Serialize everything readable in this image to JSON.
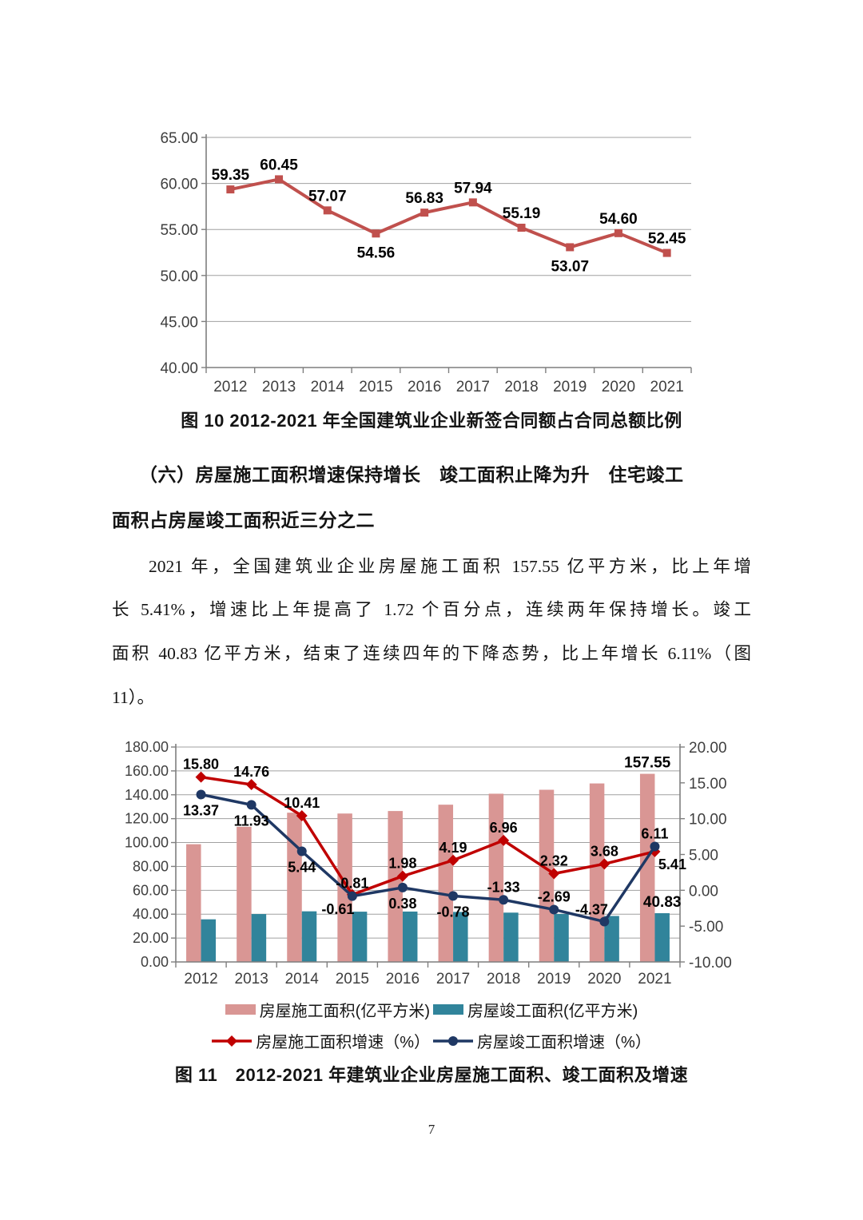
{
  "page": {
    "number": "7"
  },
  "figure10": {
    "caption": "图 10 2012-2021 年全国建筑业企业新签合同额占合同总额比例"
  },
  "section": {
    "heading_line1": "（六）房屋施工面积增速保持增长　竣工面积止降为升　住宅竣工",
    "heading_line2": "面积占房屋竣工面积近三分之二",
    "paragraph_lines": [
      "2021 年，全国建筑业企业房屋施工面积 157.55 亿平方米，比上年增",
      "长 5.41%，增速比上年提高了 1.72 个百分点，连续两年保持增长。竣工",
      "面积 40.83 亿平方米，结束了连续四年的下降态势，比上年增长 6.11%（图",
      "11）。"
    ]
  },
  "figure11": {
    "caption": "图 11　2012-2021 年建筑业企业房屋施工面积、竣工面积及增速"
  },
  "colors": {
    "fig10_line": "#C0504D",
    "construction_bar": "#D99694",
    "completion_bar": "#31849B",
    "construction_growth_line": "#C00000",
    "completion_growth_line": "#1F3864",
    "gridline": "#A0A0A0",
    "axis": "#7F7F7F",
    "tick_text": "#3F3F3F"
  },
  "chart_data": [
    {
      "type": "line",
      "title": "图 10 2012-2021 年全国建筑业企业新签合同额占合同总额比例",
      "categories": [
        "2012",
        "2013",
        "2014",
        "2015",
        "2016",
        "2017",
        "2018",
        "2019",
        "2020",
        "2021"
      ],
      "series": [
        {
          "color": "#C0504D",
          "marker": "square",
          "values": [
            59.35,
            60.45,
            57.07,
            54.56,
            56.83,
            57.94,
            55.19,
            53.07,
            54.6,
            52.45
          ],
          "label_side": [
            "above",
            "above",
            "above",
            "below",
            "above",
            "above",
            "above",
            "below",
            "above",
            "above"
          ]
        }
      ],
      "y_axis": {
        "min": 40,
        "max": 65,
        "step": 5,
        "format": "0.00"
      },
      "grid": true,
      "legend_position": "none"
    },
    {
      "type": "combo",
      "title": "图 11　2012-2021 年建筑业企业房屋施工面积、竣工面积及增速",
      "categories": [
        "2012",
        "2013",
        "2014",
        "2015",
        "2016",
        "2017",
        "2018",
        "2019",
        "2020",
        "2021"
      ],
      "bars": [
        {
          "name": "房屋施工面积(亿平方米)",
          "color": "#D99694",
          "axis": "left",
          "values": [
            98.6,
            113.2,
            125.0,
            124.3,
            126.4,
            131.7,
            140.9,
            144.2,
            149.5,
            157.55
          ],
          "value_labels": {
            "9": "157.55"
          }
        },
        {
          "name": "房屋竣工面积(亿平方米)",
          "color": "#31849B",
          "axis": "left",
          "values": [
            35.7,
            40.1,
            42.4,
            42.1,
            42.2,
            41.9,
            41.3,
            40.2,
            38.5,
            40.83
          ],
          "value_labels": {
            "9": "40.83"
          }
        }
      ],
      "lines": [
        {
          "name": "房屋施工面积增速（%）",
          "color": "#C00000",
          "marker": "diamond",
          "axis": "right",
          "values": [
            15.8,
            14.76,
            10.41,
            -0.61,
            1.98,
            4.19,
            6.96,
            2.32,
            3.68,
            5.41
          ],
          "label_side": [
            "above",
            "above",
            "above",
            "below-left",
            "above",
            "above",
            "above",
            "above",
            "above",
            "below-right"
          ]
        },
        {
          "name": "房屋竣工面积增速（%）",
          "color": "#1F3864",
          "marker": "circle",
          "axis": "right",
          "values": [
            13.37,
            11.93,
            5.44,
            -0.81,
            0.38,
            -0.78,
            -1.33,
            -2.69,
            -4.37,
            6.11
          ],
          "label_side": [
            "below",
            "below",
            "below",
            "above",
            "below",
            "below",
            "above",
            "above",
            "above-left",
            "above"
          ]
        }
      ],
      "left_axis": {
        "min": 0,
        "max": 180,
        "step": 20,
        "format": "0.00"
      },
      "right_axis": {
        "min": -10,
        "max": 20,
        "step": 5,
        "format": "0.00"
      },
      "grid": true,
      "legend_position": "bottom"
    }
  ]
}
